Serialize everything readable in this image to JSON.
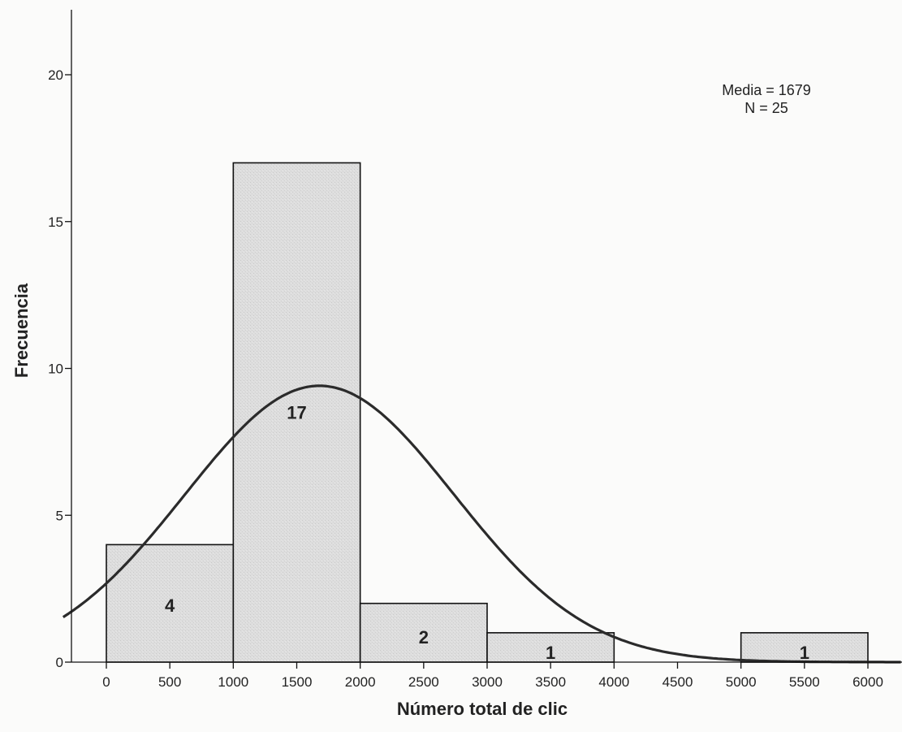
{
  "chart_data": {
    "type": "bar",
    "subtype": "histogram",
    "xlabel": "Número total de clic",
    "ylabel": "Frecuencia",
    "bin_edges": [
      0,
      1000,
      2000,
      3000,
      4000,
      5000,
      6000
    ],
    "bins": [
      {
        "start": 0,
        "end": 1000,
        "value": 4,
        "label": "4"
      },
      {
        "start": 1000,
        "end": 2000,
        "value": 17,
        "label": "17"
      },
      {
        "start": 2000,
        "end": 3000,
        "value": 2,
        "label": "2"
      },
      {
        "start": 3000,
        "end": 4000,
        "value": 1,
        "label": "1"
      },
      {
        "start": 4000,
        "end": 5000,
        "value": 0,
        "label": ""
      },
      {
        "start": 5000,
        "end": 6000,
        "value": 1,
        "label": "1"
      }
    ],
    "xticks": [
      "0",
      "500",
      "1000",
      "1500",
      "2000",
      "2500",
      "3000",
      "3500",
      "4000",
      "4500",
      "5000",
      "5500",
      "6000"
    ],
    "xtick_values": [
      0,
      500,
      1000,
      1500,
      2000,
      2500,
      3000,
      3500,
      4000,
      4500,
      5000,
      5500,
      6000
    ],
    "yticks": [
      "0",
      "5",
      "10",
      "15",
      "20"
    ],
    "ytick_values": [
      0,
      5,
      10,
      15,
      20
    ],
    "xlim": [
      -500,
      6200
    ],
    "ylim": [
      0,
      22.5
    ],
    "normal_curve": {
      "mean": 1679,
      "sd": 1060,
      "n": 25,
      "bin_width": 1000
    },
    "stats": {
      "mean_line": "Media = 1679",
      "n_line": "N = 25"
    },
    "grid": false,
    "colors": {
      "bar_fill": "#dcdcdc",
      "bar_stroke": "#111111",
      "curve": "#2b2b2b",
      "axis": "#111111"
    }
  }
}
